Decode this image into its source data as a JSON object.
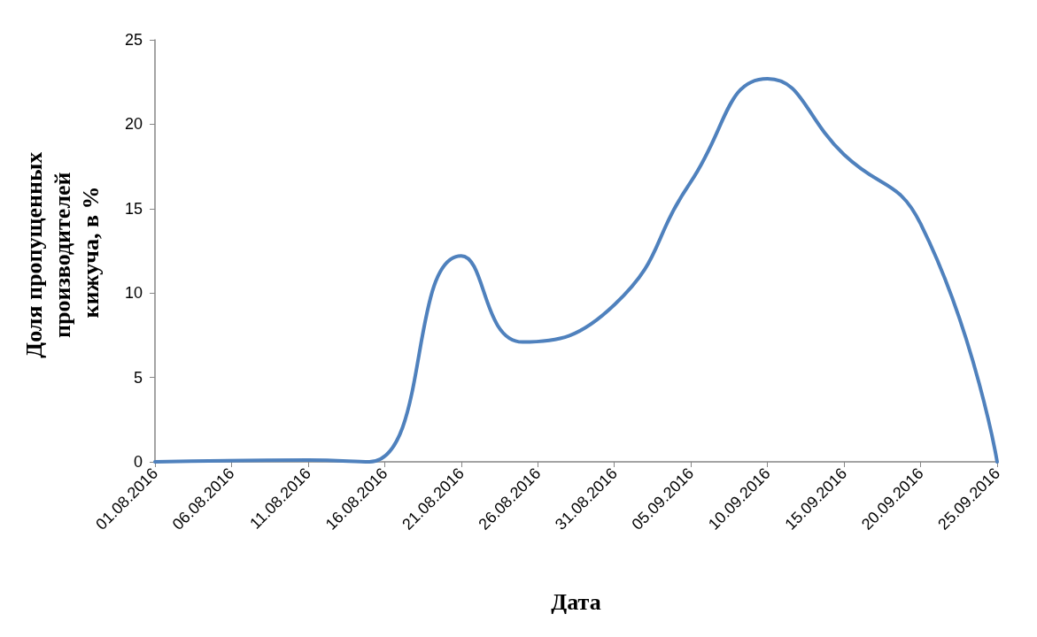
{
  "chart_data": {
    "type": "line",
    "xlabel": "Дата",
    "ylabel": "Доля пропущенных производителей кижуча, в %",
    "x": [
      "2016-08-01",
      "2016-08-11",
      "2016-08-15",
      "2016-08-21",
      "2016-08-25",
      "2016-08-31",
      "2016-09-05",
      "2016-09-10",
      "2016-09-15",
      "2016-09-20",
      "2016-09-25"
    ],
    "series": [
      {
        "color": "#4f81bd",
        "values": [
          0,
          0.1,
          0,
          12.2,
          7.1,
          9.3,
          16.6,
          22.7,
          18.2,
          14.1,
          0
        ]
      }
    ],
    "xlim": [
      "2016-08-01",
      "2016-09-25"
    ],
    "xticks": [
      {
        "value": "2016-08-01",
        "label": "01.08.2016"
      },
      {
        "value": "2016-08-06",
        "label": "06.08.2016"
      },
      {
        "value": "2016-08-11",
        "label": "11.08.2016"
      },
      {
        "value": "2016-08-16",
        "label": "16.08.2016"
      },
      {
        "value": "2016-08-21",
        "label": "21.08.2016"
      },
      {
        "value": "2016-08-26",
        "label": "26.08.2016"
      },
      {
        "value": "2016-08-31",
        "label": "31.08.2016"
      },
      {
        "value": "2016-09-05",
        "label": "05.09.2016"
      },
      {
        "value": "2016-09-10",
        "label": "10.09.2016"
      },
      {
        "value": "2016-09-15",
        "label": "15.09.2016"
      },
      {
        "value": "2016-09-20",
        "label": "20.09.2016"
      },
      {
        "value": "2016-09-25",
        "label": "25.09.2016"
      }
    ],
    "ylim": [
      0,
      25
    ],
    "yticks": [
      0,
      5,
      10,
      15,
      20,
      25
    ],
    "grid": false,
    "marker": "none",
    "line_style": "solid"
  }
}
